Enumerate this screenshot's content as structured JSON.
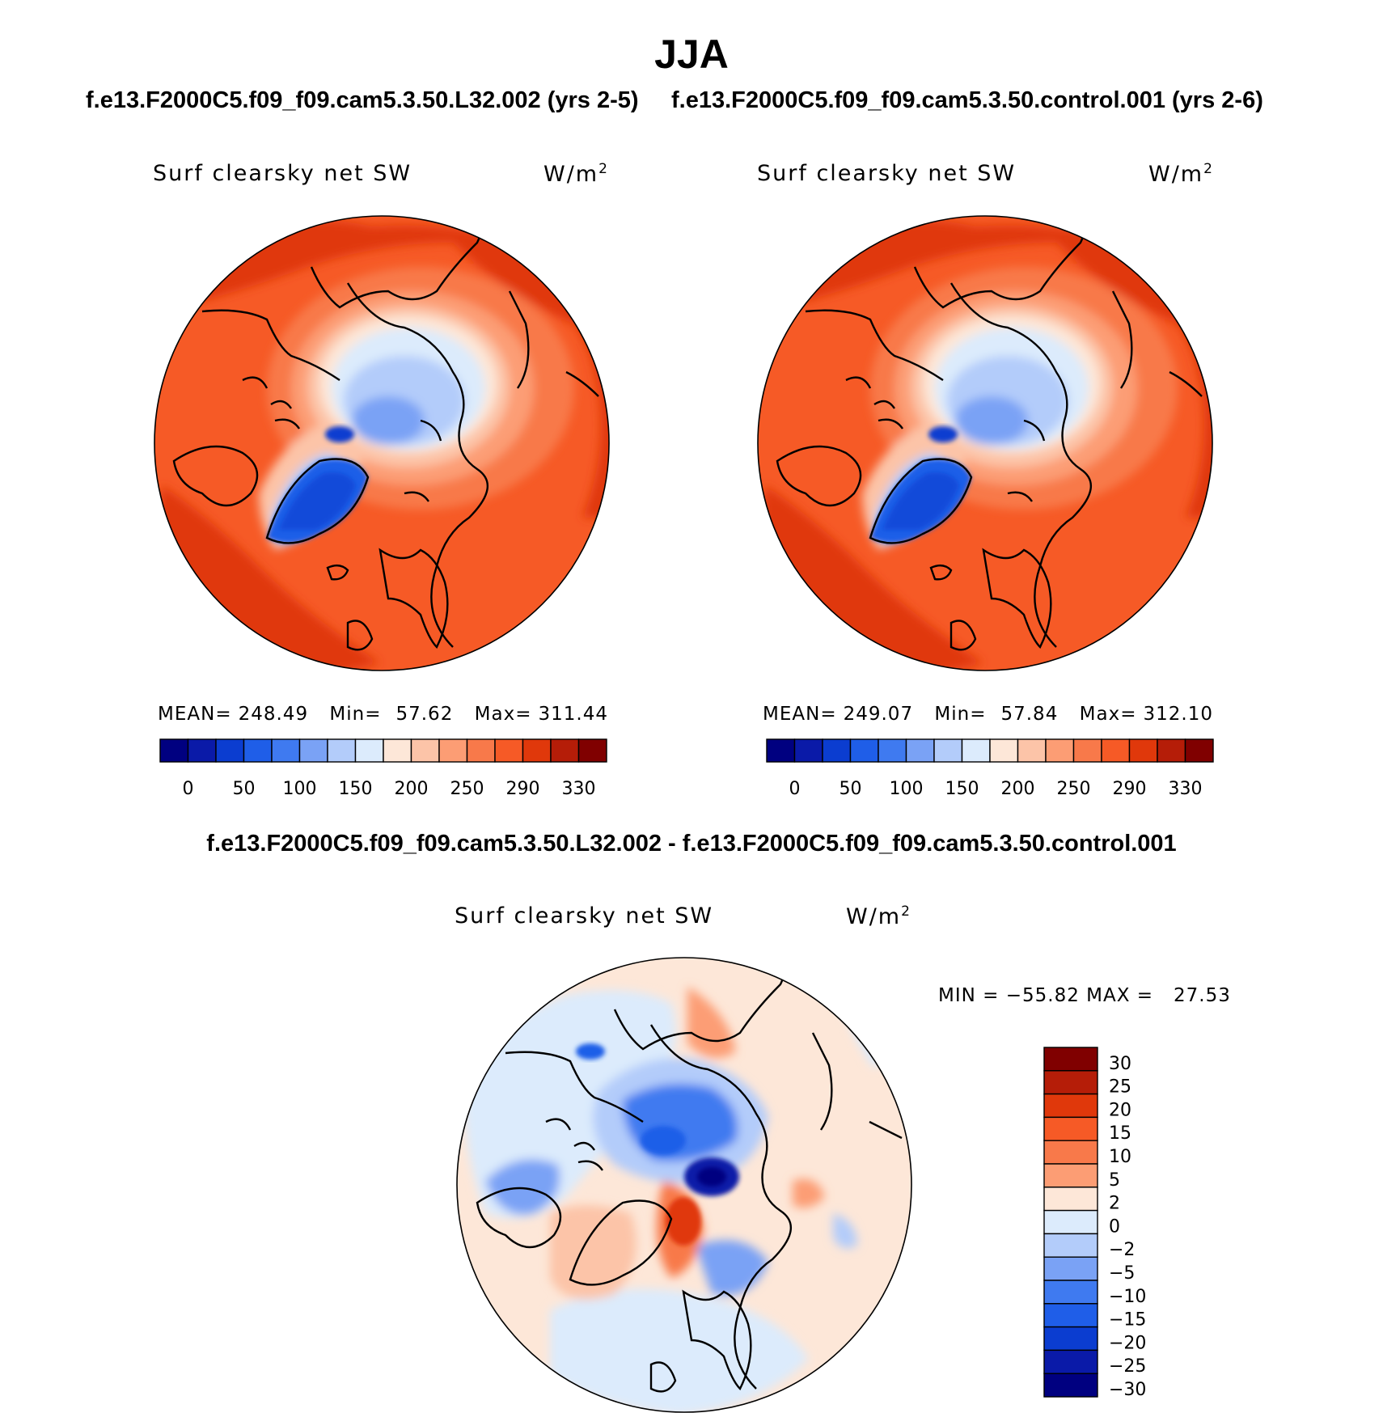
{
  "figure": {
    "season": "JJA",
    "case1_title": "f.e13.F2000C5.f09_f09.cam5.3.50.L32.002 (yrs 2-5)",
    "case2_title": "f.e13.F2000C5.f09_f09.cam5.3.50.control.001 (yrs 2-6)",
    "diff_title": "f.e13.F2000C5.f09_f09.cam5.3.50.L32.002 - f.e13.F2000C5.f09_f09.cam5.3.50.control.001"
  },
  "panels": [
    {
      "variable": "Surf clearsky net SW",
      "units_base": "W/m",
      "units_exp": "2",
      "mean_label": "MEAN=",
      "mean": "248.49",
      "min_label": "Min=",
      "min": "57.62",
      "max_label": "Max=",
      "max": "311.44"
    },
    {
      "variable": "Surf clearsky net SW",
      "units_base": "W/m",
      "units_exp": "2",
      "mean_label": "MEAN=",
      "mean": "249.07",
      "min_label": "Min=",
      "min": "57.84",
      "max_label": "Max=",
      "max": "312.10"
    },
    {
      "variable": "Surf clearsky net SW",
      "units_base": "W/m",
      "units_exp": "2",
      "minmax_text": "MIN = −55.82 MAX =   27.53"
    }
  ],
  "chart_data": [
    {
      "type": "heatmap",
      "projection": "north-polar-stereographic",
      "title": "Surf clearsky net SW",
      "units": "W/m2",
      "stats": {
        "mean": 248.49,
        "min": 57.62,
        "max": 311.44
      },
      "colorbar": {
        "orientation": "horizontal",
        "tick_labels": [
          "0",
          "50",
          "100",
          "150",
          "200",
          "250",
          "290",
          "330"
        ],
        "colors": [
          "#000080",
          "#0a1aa8",
          "#0b3dd0",
          "#1f5ee8",
          "#3f7af0",
          "#7aa2f5",
          "#b3ccfa",
          "#dcebfc",
          "#fde7d8",
          "#fcc4a8",
          "#fc9d74",
          "#f8794a",
          "#f65a26",
          "#e0380b",
          "#b51d08",
          "#800000"
        ]
      }
    },
    {
      "type": "heatmap",
      "projection": "north-polar-stereographic",
      "title": "Surf clearsky net SW",
      "units": "W/m2",
      "stats": {
        "mean": 249.07,
        "min": 57.84,
        "max": 312.1
      },
      "colorbar": {
        "orientation": "horizontal",
        "tick_labels": [
          "0",
          "50",
          "100",
          "150",
          "200",
          "250",
          "290",
          "330"
        ],
        "colors": [
          "#000080",
          "#0a1aa8",
          "#0b3dd0",
          "#1f5ee8",
          "#3f7af0",
          "#7aa2f5",
          "#b3ccfa",
          "#dcebfc",
          "#fde7d8",
          "#fcc4a8",
          "#fc9d74",
          "#f8794a",
          "#f65a26",
          "#e0380b",
          "#b51d08",
          "#800000"
        ]
      }
    },
    {
      "type": "heatmap",
      "projection": "north-polar-stereographic",
      "title": "Surf clearsky net SW",
      "units": "W/m2",
      "stats": {
        "min": -55.82,
        "max": 27.53
      },
      "colorbar": {
        "orientation": "vertical",
        "tick_labels": [
          "30",
          "25",
          "20",
          "15",
          "10",
          "5",
          "2",
          "0",
          "−2",
          "−5",
          "−10",
          "−15",
          "−20",
          "−25",
          "−30"
        ],
        "colors": [
          "#800000",
          "#b51d08",
          "#e0380b",
          "#f65a26",
          "#f8794a",
          "#fc9d74",
          "#fde7d8",
          "#dcebfc",
          "#b3ccfa",
          "#7aa2f5",
          "#3f7af0",
          "#1f5ee8",
          "#0b3dd0",
          "#0a1aa8",
          "#000080"
        ]
      }
    }
  ]
}
